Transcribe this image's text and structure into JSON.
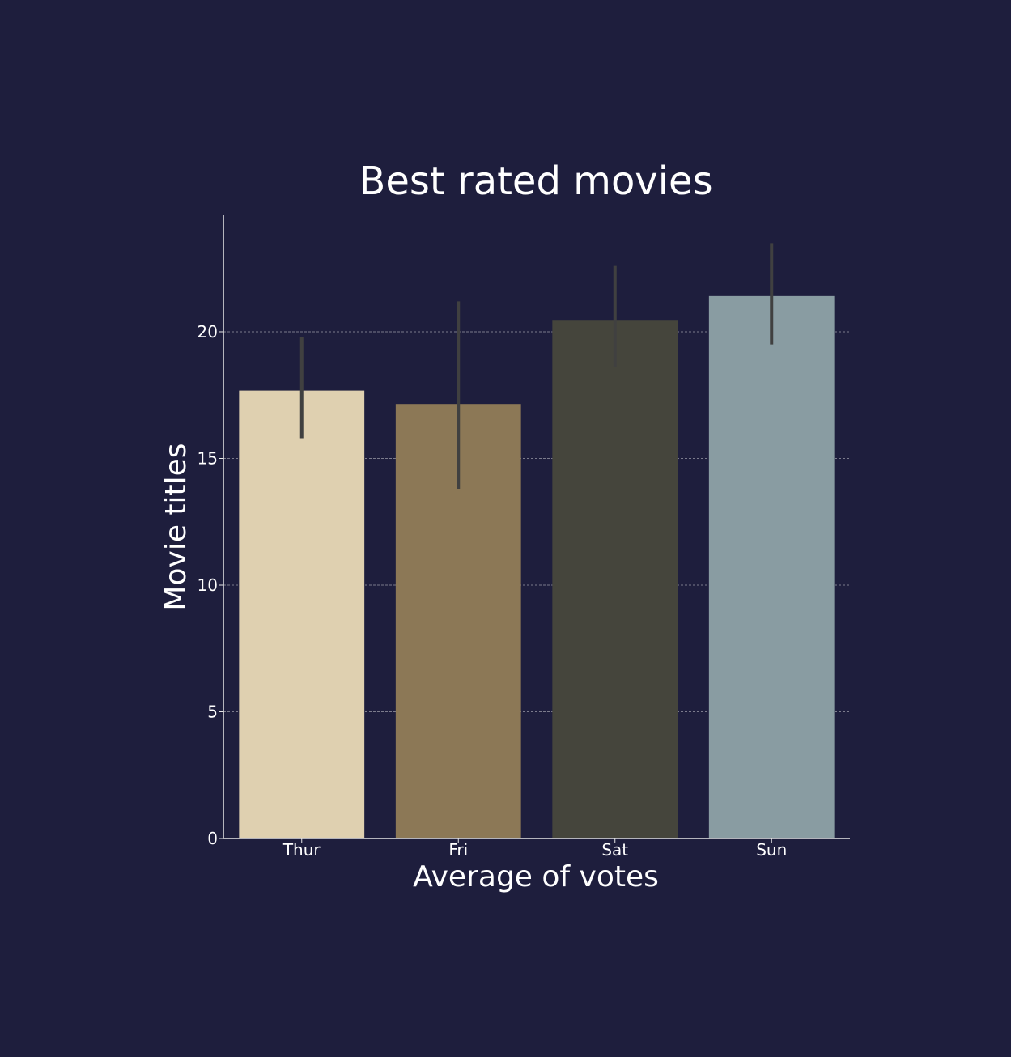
{
  "chart_data": {
    "type": "bar",
    "title": "Best rated movies",
    "xlabel": "Average of votes",
    "ylabel": "Movie titles",
    "categories": [
      "Thur",
      "Fri",
      "Sat",
      "Sun"
    ],
    "values": [
      17.68,
      17.15,
      20.44,
      21.41
    ],
    "error_bars": [
      {
        "low": 15.8,
        "high": 19.8
      },
      {
        "low": 13.8,
        "high": 21.2
      },
      {
        "low": 18.6,
        "high": 22.6
      },
      {
        "low": 19.5,
        "high": 23.5
      }
    ],
    "bar_colors": [
      "#dfd0b0",
      "#8c7856",
      "#45453c",
      "#899ca2"
    ],
    "error_bar_color": "#404040",
    "ylim": [
      0,
      24.6
    ],
    "yticks": [
      0,
      5,
      10,
      15,
      20
    ],
    "grid": "y-dashed",
    "colors": {
      "background": "#1e1e3d",
      "text": "#ffffff",
      "axis": "#e6e6e6",
      "grid": "#9a9aa6"
    }
  }
}
